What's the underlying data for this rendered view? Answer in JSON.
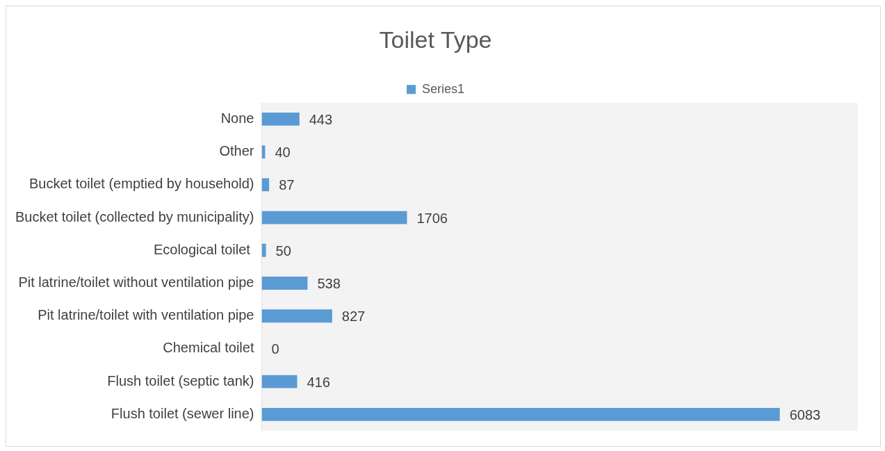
{
  "chart_data": {
    "type": "bar",
    "orientation": "horizontal",
    "title": "Toilet Type",
    "categories": [
      "None",
      "Other",
      "Bucket toilet (emptied by household)",
      "Bucket toilet (collected by municipality)",
      "Ecological toilet ",
      "Pit latrine/toilet without ventilation pipe",
      "Pit latrine/toilet with ventilation pipe",
      "Chemical toilet",
      "Flush toilet (septic tank)",
      "Flush toilet (sewer line)"
    ],
    "series": [
      {
        "name": "Series1",
        "color": "#5b9bd5",
        "values": [
          443,
          40,
          87,
          1706,
          50,
          538,
          827,
          0,
          416,
          6083
        ]
      }
    ],
    "data_labels": true,
    "legend": "top",
    "grid": false
  }
}
